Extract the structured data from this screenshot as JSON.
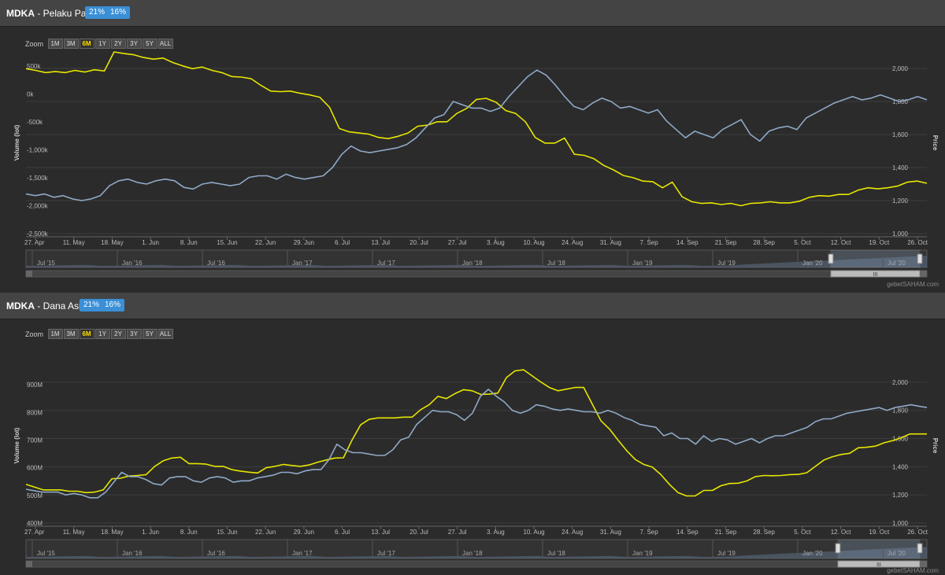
{
  "site": {
    "credit": "gebetSAHAM.com"
  },
  "colors": {
    "bg": "#2b2b2b",
    "header": "#444444",
    "flow_line": "#e6e600",
    "price_line": "#8fa9c6",
    "badge": "#3a8fd6",
    "grid": "#3c3c3c"
  },
  "panels": [
    {
      "ticker": "MDKA",
      "title_suffix": " - Pelaku Pasar",
      "badges": [
        "21%",
        "16%"
      ],
      "zoom": {
        "label": "Zoom",
        "buttons": [
          "1M",
          "3M",
          "6M",
          "1Y",
          "2Y",
          "3Y",
          "5Y",
          "ALL"
        ],
        "selected": "6M"
      },
      "navigator_labels": [
        "Jul '15",
        "Jan '16",
        "Jul '16",
        "Jan '17",
        "Jul '17",
        "Jan '18",
        "Jul '18",
        "Jan '19",
        "Jul '19",
        "Jan '20",
        "Jul '20"
      ],
      "navigator_handle": "III",
      "chart_data": {
        "type": "line",
        "xlabels": [
          "27. Apr",
          "11. May",
          "18. May",
          "1. Jun",
          "8. Jun",
          "15. Jun",
          "22. Jun",
          "29. Jun",
          "6. Jul",
          "13. Jul",
          "20. Jul",
          "27. Jul",
          "3. Aug",
          "10. Aug",
          "24. Aug",
          "31. Aug",
          "7. Sep",
          "14. Sep",
          "21. Sep",
          "28. Sep",
          "5. Oct",
          "12. Oct",
          "19. Oct",
          "26. Oct"
        ],
        "ylabel_left": "Volume (lot)",
        "ylabel_right": "Price",
        "left_axis": {
          "ticks": [
            "500k",
            "0k",
            "-500k",
            "-1,000k",
            "-1,500k",
            "-2,000k",
            "-2,500k"
          ],
          "min": -2500000,
          "max": 750000
        },
        "right_axis": {
          "ticks": [
            "2,000",
            "1,800",
            "1,600",
            "1,400",
            "1,200",
            "1,000"
          ],
          "min": 1000,
          "max": 2100
        },
        "series": [
          {
            "axis": "left",
            "values": [
              450000,
              420000,
              380000,
              400000,
              380000,
              420000,
              390000,
              430000,
              410000,
              750000,
              720000,
              700000,
              650000,
              620000,
              640000,
              560000,
              500000,
              450000,
              480000,
              420000,
              380000,
              310000,
              300000,
              270000,
              150000,
              50000,
              40000,
              50000,
              10000,
              -20000,
              -60000,
              -240000,
              -620000,
              -680000,
              -700000,
              -720000,
              -780000,
              -800000,
              -760000,
              -700000,
              -580000,
              -560000,
              -500000,
              -500000,
              -350000,
              -260000,
              -100000,
              -80000,
              -150000,
              -300000,
              -350000,
              -500000,
              -780000,
              -880000,
              -880000,
              -790000,
              -1080000,
              -1100000,
              -1160000,
              -1280000,
              -1360000,
              -1460000,
              -1500000,
              -1560000,
              -1570000,
              -1680000,
              -1580000,
              -1840000,
              -1930000,
              -1960000,
              -1950000,
              -1980000,
              -1960000,
              -2000000,
              -1960000,
              -1950000,
              -1930000,
              -1950000,
              -1950000,
              -1920000,
              -1850000,
              -1820000,
              -1830000,
              -1800000,
              -1800000,
              -1720000,
              -1680000,
              -1700000,
              -1680000,
              -1650000,
              -1580000,
              -1560000,
              -1600000
            ]
          },
          {
            "axis": "right",
            "values": [
              1240,
              1230,
              1240,
              1220,
              1230,
              1210,
              1200,
              1210,
              1230,
              1290,
              1320,
              1330,
              1310,
              1300,
              1320,
              1330,
              1320,
              1280,
              1270,
              1300,
              1310,
              1300,
              1290,
              1300,
              1340,
              1350,
              1350,
              1330,
              1360,
              1340,
              1330,
              1340,
              1350,
              1400,
              1480,
              1530,
              1500,
              1490,
              1500,
              1510,
              1520,
              1540,
              1580,
              1640,
              1700,
              1720,
              1800,
              1780,
              1760,
              1760,
              1740,
              1760,
              1830,
              1890,
              1950,
              1990,
              1960,
              1900,
              1830,
              1770,
              1750,
              1790,
              1820,
              1800,
              1760,
              1770,
              1750,
              1730,
              1750,
              1680,
              1630,
              1580,
              1620,
              1600,
              1580,
              1630,
              1660,
              1690,
              1600,
              1560,
              1620,
              1640,
              1650,
              1630,
              1700,
              1730,
              1760,
              1790,
              1810,
              1830,
              1810,
              1820,
              1840,
              1820,
              1800,
              1810,
              1830,
              1810
            ]
          }
        ]
      }
    },
    {
      "ticker": "MDKA",
      "title_suffix": " - Dana Asing",
      "badges": [
        "21%",
        "16%"
      ],
      "zoom": {
        "label": "Zoom",
        "buttons": [
          "1M",
          "3M",
          "6M",
          "1Y",
          "2Y",
          "3Y",
          "5Y",
          "ALL"
        ],
        "selected": "6M"
      },
      "navigator_labels": [
        "Jul '15",
        "Jan '16",
        "Jul '16",
        "Jan '17",
        "Jul '17",
        "Jan '18",
        "Jul '18",
        "Jan '19",
        "Jul '19",
        "Jan '20",
        "Jul '20"
      ],
      "navigator_handle": "III",
      "chart_data": {
        "type": "line",
        "xlabels": [
          "27. Apr",
          "11. May",
          "18. May",
          "1. Jun",
          "8. Jun",
          "15. Jun",
          "22. Jun",
          "29. Jun",
          "6. Jul",
          "13. Jul",
          "20. Jul",
          "27. Jul",
          "3. Aug",
          "10. Aug",
          "24. Aug",
          "31. Aug",
          "7. Sep",
          "14. Sep",
          "21. Sep",
          "28. Sep",
          "5. Oct",
          "12. Oct",
          "19. Oct",
          "26. Oct"
        ],
        "ylabel_left": "Volume (lot)",
        "ylabel_right": "Price",
        "left_axis": {
          "ticks": [
            "900M",
            "800M",
            "700M",
            "600M",
            "500M",
            "400M"
          ],
          "min": 400000000,
          "max": 960000000
        },
        "right_axis": {
          "ticks": [
            "2,000",
            "1,800",
            "1,600",
            "1,400",
            "1,200",
            "1,000"
          ],
          "min": 1000,
          "max": 2100
        },
        "series": [
          {
            "axis": "left",
            "values": [
              540000000,
              530000000,
              520000000,
              520000000,
              520000000,
              515000000,
              515000000,
              510000000,
              512000000,
              520000000,
              560000000,
              562000000,
              570000000,
              572000000,
              575000000,
              605000000,
              625000000,
              635000000,
              638000000,
              615000000,
              615000000,
              613000000,
              605000000,
              605000000,
              593000000,
              588000000,
              584000000,
              581000000,
              600000000,
              605000000,
              612000000,
              608000000,
              605000000,
              610000000,
              620000000,
              628000000,
              635000000,
              636000000,
              700000000,
              755000000,
              775000000,
              780000000,
              780000000,
              780000000,
              783000000,
              783000000,
              810000000,
              828000000,
              858000000,
              850000000,
              868000000,
              882000000,
              878000000,
              865000000,
              866000000,
              870000000,
              926000000,
              950000000,
              954000000,
              932000000,
              910000000,
              890000000,
              878000000,
              884000000,
              890000000,
              890000000,
              830000000,
              770000000,
              740000000,
              700000000,
              662000000,
              630000000,
              612000000,
              602000000,
              575000000,
              540000000,
              510000000,
              498000000,
              498000000,
              518000000,
              518000000,
              535000000,
              543000000,
              544000000,
              552000000,
              568000000,
              572000000,
              571000000,
              572000000,
              575000000,
              576000000,
              582000000,
              605000000,
              628000000,
              640000000,
              648000000,
              652000000,
              672000000,
              674000000,
              678000000,
              690000000,
              698000000,
              708000000,
              722000000,
              722000000,
              722000000
            ]
          },
          {
            "axis": "right",
            "values": [
              1240,
              1230,
              1220,
              1220,
              1220,
              1200,
              1210,
              1200,
              1180,
              1180,
              1220,
              1290,
              1360,
              1330,
              1330,
              1310,
              1280,
              1270,
              1320,
              1330,
              1330,
              1300,
              1290,
              1320,
              1330,
              1320,
              1290,
              1300,
              1300,
              1320,
              1330,
              1340,
              1360,
              1360,
              1350,
              1370,
              1380,
              1380,
              1450,
              1560,
              1520,
              1500,
              1500,
              1490,
              1480,
              1480,
              1520,
              1590,
              1610,
              1700,
              1750,
              1800,
              1790,
              1790,
              1770,
              1730,
              1780,
              1900,
              1950,
              1900,
              1860,
              1800,
              1780,
              1800,
              1840,
              1830,
              1810,
              1800,
              1810,
              1800,
              1790,
              1790,
              1780,
              1800,
              1780,
              1750,
              1730,
              1700,
              1690,
              1680,
              1620,
              1640,
              1600,
              1600,
              1560,
              1620,
              1580,
              1600,
              1590,
              1560,
              1580,
              1600,
              1570,
              1600,
              1620,
              1620,
              1640,
              1660,
              1680,
              1720,
              1740,
              1740,
              1760,
              1780,
              1790,
              1800,
              1810,
              1820,
              1800,
              1820,
              1830,
              1840,
              1830,
              1820
            ]
          }
        ]
      }
    }
  ]
}
